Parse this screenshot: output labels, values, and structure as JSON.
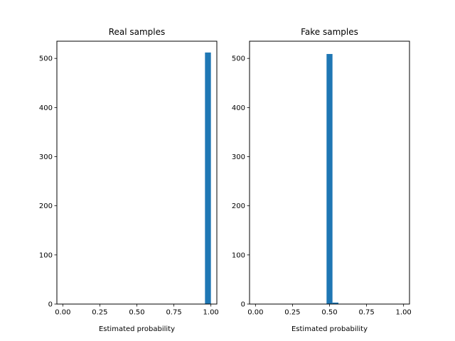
{
  "colors": {
    "bar": "#1f77b4",
    "axis": "#000000",
    "background": "#ffffff"
  },
  "chart_data": [
    {
      "type": "bar",
      "subtype": "histogram",
      "title": "Real samples",
      "xlabel": "Estimated probability",
      "ylabel": "",
      "xlim": [
        -0.04,
        1.04
      ],
      "ylim": [
        0,
        535
      ],
      "xticks": [
        0.0,
        0.25,
        0.5,
        0.75,
        1.0
      ],
      "xtick_labels": [
        "0.00",
        "0.25",
        "0.50",
        "0.75",
        "1.00"
      ],
      "yticks": [
        0,
        100,
        200,
        300,
        400,
        500
      ],
      "ytick_labels": [
        "0",
        "100",
        "200",
        "300",
        "400",
        "500"
      ],
      "grid": false,
      "bins": [
        {
          "x0": 0.96,
          "x1": 1.0,
          "count": 512
        }
      ]
    },
    {
      "type": "bar",
      "subtype": "histogram",
      "title": "Fake samples",
      "xlabel": "Estimated probability",
      "ylabel": "",
      "xlim": [
        -0.04,
        1.04
      ],
      "ylim": [
        0,
        535
      ],
      "xticks": [
        0.0,
        0.25,
        0.5,
        0.75,
        1.0
      ],
      "xtick_labels": [
        "0.00",
        "0.25",
        "0.50",
        "0.75",
        "1.00"
      ],
      "yticks": [
        0,
        100,
        200,
        300,
        400,
        500
      ],
      "ytick_labels": [
        "0",
        "100",
        "200",
        "300",
        "400",
        "500"
      ],
      "grid": false,
      "bins": [
        {
          "x0": 0.48,
          "x1": 0.52,
          "count": 509
        },
        {
          "x0": 0.52,
          "x1": 0.56,
          "count": 3
        }
      ]
    }
  ]
}
